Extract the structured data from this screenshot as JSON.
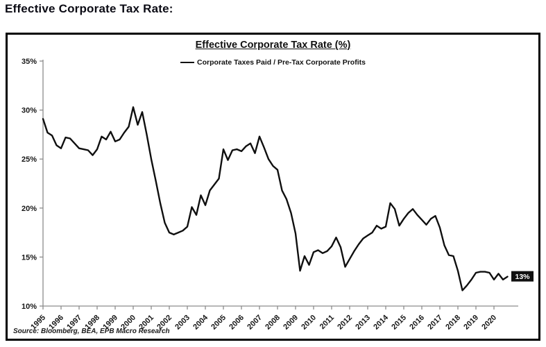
{
  "page": {
    "title": "Effective Corporate Tax Rate:"
  },
  "chart": {
    "title": "Effective Corporate Tax Rate (%)",
    "legend": "Corporate Taxes Paid / Pre-Tax Corporate Profits",
    "source": "Source: Bloomberg, BEA, EPB Macro Research",
    "end_label": "13%",
    "line_color": "#0f0f0f",
    "axis_color": "#8c8c8c",
    "label_bg": "#111111",
    "label_fg": "#ffffff"
  },
  "chart_data": {
    "type": "line",
    "title": "Effective Corporate Tax Rate (%)",
    "series_name": "Corporate Taxes Paid / Pre-Tax Corporate Profits",
    "x_unit": "quarterly",
    "x_start": "1995Q1",
    "x_end": "2020Q4",
    "ylim": [
      10,
      35
    ],
    "y_tick_step": 5,
    "y_tick_labels": [
      "10%",
      "15%",
      "20%",
      "25%",
      "30%",
      "35%"
    ],
    "grid": false,
    "legend_position": "top-center",
    "end_label": "13%",
    "year_ticks": [
      "1995",
      "1996",
      "1997",
      "1998",
      "1999",
      "2000",
      "2001",
      "2002",
      "2003",
      "2004",
      "2005",
      "2006",
      "2007",
      "2008",
      "2009",
      "2010",
      "2011",
      "2012",
      "2013",
      "2014",
      "2015",
      "2016",
      "2017",
      "2018",
      "2019",
      "2020"
    ],
    "values": [
      29.1,
      27.7,
      27.4,
      26.4,
      26.1,
      27.2,
      27.1,
      26.6,
      26.1,
      26.0,
      25.9,
      25.4,
      26.0,
      27.3,
      27.0,
      27.8,
      26.8,
      27.0,
      27.7,
      28.3,
      30.3,
      28.5,
      29.8,
      27.5,
      25.0,
      22.8,
      20.5,
      18.5,
      17.5,
      17.3,
      17.5,
      17.7,
      18.1,
      20.1,
      19.3,
      21.3,
      20.3,
      21.8,
      22.4,
      23.0,
      26.0,
      24.9,
      25.9,
      26.0,
      25.8,
      26.3,
      26.6,
      25.6,
      27.3,
      26.2,
      25.0,
      24.3,
      23.9,
      21.8,
      20.9,
      19.5,
      17.4,
      13.6,
      15.1,
      14.2,
      15.5,
      15.7,
      15.4,
      15.6,
      16.1,
      17.0,
      16.0,
      14.0,
      14.8,
      15.6,
      16.3,
      16.9,
      17.2,
      17.5,
      18.2,
      17.9,
      18.1,
      20.5,
      19.9,
      18.2,
      18.9,
      19.5,
      19.9,
      19.3,
      18.8,
      18.3,
      18.9,
      19.2,
      18.0,
      16.2,
      15.2,
      15.1,
      13.6,
      11.6,
      12.1,
      12.7,
      13.4,
      13.5,
      13.5,
      13.4,
      12.7,
      13.3,
      12.7,
      13.0
    ]
  }
}
